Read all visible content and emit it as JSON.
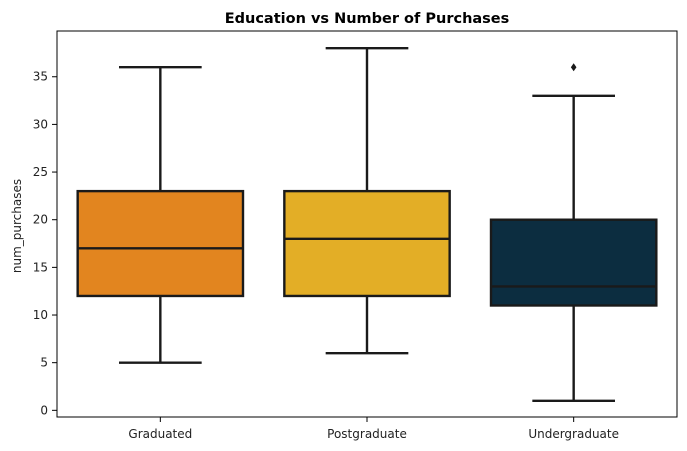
{
  "chart_data": {
    "type": "box",
    "title": "Education vs Number of Purchases",
    "xlabel": "",
    "ylabel": "num_purchases",
    "ylim": [
      -0.7,
      39.8
    ],
    "yticks": [
      0,
      5,
      10,
      15,
      20,
      25,
      30,
      35
    ],
    "grid": false,
    "categories": [
      "Graduated",
      "Postgraduate",
      "Undergraduate"
    ],
    "boxes": [
      {
        "category": "Graduated",
        "whisker_low": 5,
        "q1": 12,
        "median": 17,
        "q3": 23,
        "whisker_high": 36,
        "outliers": [],
        "color": "#e2851f"
      },
      {
        "category": "Postgraduate",
        "whisker_low": 6,
        "q1": 12,
        "median": 18,
        "q3": 23,
        "whisker_high": 38,
        "outliers": [],
        "color": "#e3ae26"
      },
      {
        "category": "Undergraduate",
        "whisker_low": 1,
        "q1": 11,
        "median": 13,
        "q3": 20,
        "whisker_high": 33,
        "outliers": [
          36
        ],
        "color": "#0c2d40"
      }
    ]
  }
}
